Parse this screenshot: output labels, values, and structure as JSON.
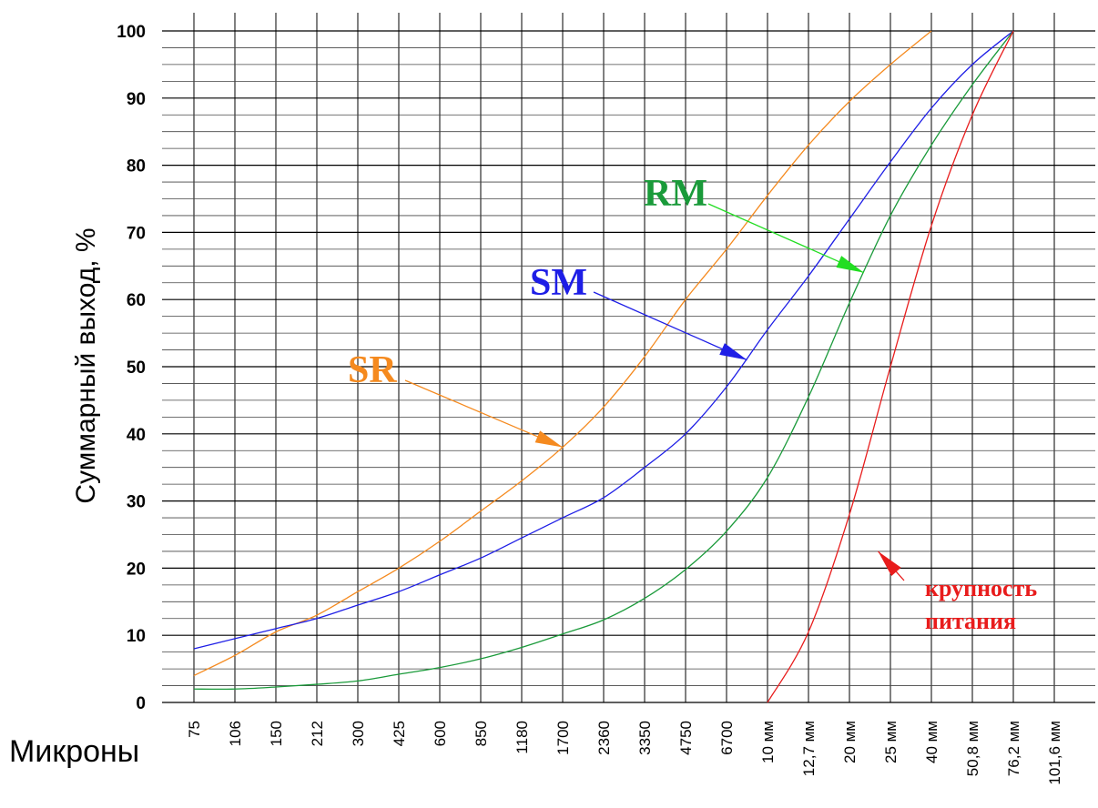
{
  "chart_data": {
    "type": "line",
    "ylabel": "Суммарный выход, %",
    "xlabel": "Микроны",
    "ylim": [
      0,
      100
    ],
    "yticks": [
      0,
      10,
      20,
      30,
      40,
      50,
      60,
      70,
      80,
      90,
      100
    ],
    "grid": true,
    "categories": [
      "75",
      "106",
      "150",
      "212",
      "300",
      "425",
      "600",
      "850",
      "1180",
      "1700",
      "2360",
      "3350",
      "4750",
      "6700",
      "10 мм",
      "12,7 мм",
      "20 мм",
      "25 мм",
      "40 мм",
      "50,8 мм",
      "76,2 мм",
      "101,6 мм"
    ],
    "series": [
      {
        "name": "SR",
        "color": "#f58a1f",
        "points": [
          [
            0,
            4
          ],
          [
            1,
            7
          ],
          [
            2,
            10.5
          ],
          [
            3,
            13
          ],
          [
            4,
            16.5
          ],
          [
            5,
            20
          ],
          [
            6,
            24
          ],
          [
            7,
            28.5
          ],
          [
            8,
            33
          ],
          [
            9,
            38
          ],
          [
            10,
            44
          ],
          [
            11,
            51.5
          ],
          [
            12,
            60
          ],
          [
            13,
            67.5
          ],
          [
            14,
            75.5
          ],
          [
            15,
            83
          ],
          [
            16,
            89.5
          ],
          [
            17,
            95
          ],
          [
            18,
            100
          ]
        ]
      },
      {
        "name": "SM",
        "color": "#1e1ee6",
        "points": [
          [
            0,
            8
          ],
          [
            1,
            9.5
          ],
          [
            2,
            11
          ],
          [
            3,
            12.5
          ],
          [
            4,
            14.5
          ],
          [
            5,
            16.5
          ],
          [
            6,
            19
          ],
          [
            7,
            21.5
          ],
          [
            8,
            24.5
          ],
          [
            9,
            27.5
          ],
          [
            10,
            30.5
          ],
          [
            11,
            35
          ],
          [
            12,
            40
          ],
          [
            13,
            47
          ],
          [
            14,
            55.5
          ],
          [
            15,
            63.5
          ],
          [
            16,
            72
          ],
          [
            17,
            80.5
          ],
          [
            18,
            88.5
          ],
          [
            19,
            95
          ],
          [
            20,
            100
          ]
        ]
      },
      {
        "name": "RM",
        "color": "#1a9a3a",
        "points": [
          [
            0,
            2
          ],
          [
            1,
            2
          ],
          [
            2,
            2.3
          ],
          [
            3,
            2.7
          ],
          [
            4,
            3.2
          ],
          [
            5,
            4.2
          ],
          [
            6,
            5.2
          ],
          [
            7,
            6.5
          ],
          [
            8,
            8.2
          ],
          [
            9,
            10.2
          ],
          [
            10,
            12.3
          ],
          [
            11,
            15.5
          ],
          [
            12,
            19.8
          ],
          [
            13,
            25.5
          ],
          [
            14,
            33.5
          ],
          [
            15,
            45.5
          ],
          [
            16,
            59.5
          ],
          [
            17,
            72.5
          ],
          [
            18,
            83
          ],
          [
            19,
            92
          ],
          [
            20,
            100
          ]
        ]
      },
      {
        "name": "крупность питания",
        "color": "#e81c1c",
        "points": [
          [
            14,
            0
          ],
          [
            15,
            10.5
          ],
          [
            16,
            28
          ],
          [
            17,
            50
          ],
          [
            18,
            71
          ],
          [
            19,
            87.5
          ],
          [
            20,
            100
          ]
        ]
      }
    ],
    "annotations": [
      {
        "series": "SR",
        "text": "SR",
        "color": "#f58a1f",
        "point": [
          9,
          38
        ]
      },
      {
        "series": "SM",
        "text": "SM",
        "color": "#1e1ee6",
        "point": [
          13.5,
          51
        ]
      },
      {
        "series": "RM",
        "text": "RM",
        "color": "#1a9a3a",
        "arrow_color": "#22dd22",
        "point": [
          16.35,
          64
        ]
      },
      {
        "series": "крупность питания",
        "text_lines": [
          "крупность",
          "питания"
        ],
        "color": "#e81c1c",
        "point": [
          16.7,
          22.5
        ]
      }
    ]
  }
}
